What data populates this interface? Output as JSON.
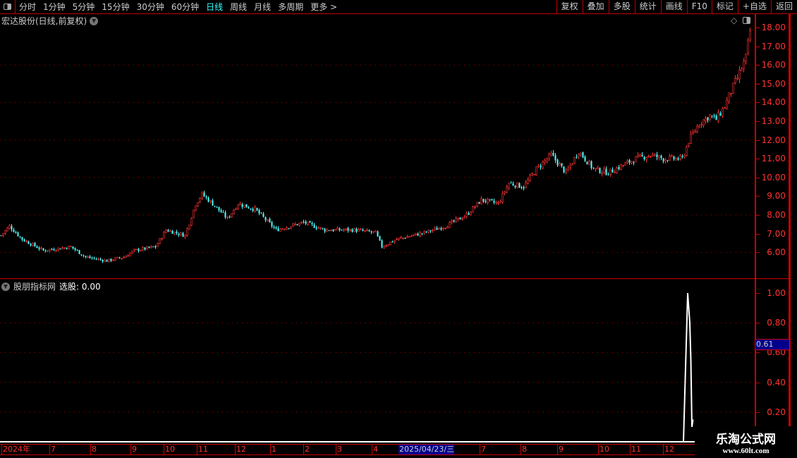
{
  "toolbar": {
    "periods": [
      "分时",
      "1分钟",
      "5分钟",
      "15分钟",
      "30分钟",
      "60分钟",
      "日线",
      "周线",
      "月线",
      "多周期",
      "更多 >"
    ],
    "active_period": "日线",
    "actions": [
      "复权",
      "叠加",
      "多股",
      "统计",
      "画线",
      "F10",
      "标记",
      "+自选",
      "返回"
    ]
  },
  "main": {
    "title": "宏达股份(日线,前复权)"
  },
  "indicator": {
    "name": "股朋指标网",
    "label": "选股: 0.00",
    "cursor_value": "0.61"
  },
  "price_axis": [
    "18.00",
    "17.00",
    "16.00",
    "15.00",
    "14.00",
    "13.00",
    "12.00",
    "11.00",
    "10.00",
    "9.00",
    "8.00",
    "7.00",
    "6.00"
  ],
  "indicator_axis": [
    "1.00",
    "0.80",
    "0.60",
    "0.40",
    "0.20"
  ],
  "date_axis": [
    "2024年",
    "7",
    "8",
    "9",
    "10",
    "11",
    "12",
    "1",
    "2",
    "3",
    "4",
    "2025/04/23/三",
    "7",
    "8",
    "9",
    "10",
    "11",
    "12"
  ],
  "watermark": {
    "name": "乐淘公式网",
    "url": "www.60lt.com"
  },
  "colors": {
    "up": "#ff3232",
    "down": "#54ffff",
    "axis": "#cc0000",
    "cursor_bg": "#00008b"
  },
  "chart_data": {
    "type": "candlestick",
    "ylim": [
      5,
      18.5
    ],
    "close_anchors": [
      [
        0,
        6.9
      ],
      [
        4,
        7.4
      ],
      [
        10,
        6.7
      ],
      [
        20,
        6.1
      ],
      [
        33,
        6.3
      ],
      [
        40,
        5.75
      ],
      [
        50,
        5.55
      ],
      [
        58,
        5.75
      ],
      [
        63,
        6.1
      ],
      [
        73,
        6.3
      ],
      [
        78,
        7.2
      ],
      [
        87,
        6.9
      ],
      [
        92,
        8.6
      ],
      [
        95,
        9.1
      ],
      [
        100,
        8.6
      ],
      [
        107,
        7.8
      ],
      [
        112,
        8.6
      ],
      [
        120,
        8.3
      ],
      [
        130,
        7.2
      ],
      [
        143,
        7.6
      ],
      [
        153,
        7.2
      ],
      [
        167,
        7.2
      ],
      [
        177,
        7.05
      ],
      [
        180,
        6.3
      ],
      [
        187,
        6.7
      ],
      [
        200,
        7.05
      ],
      [
        210,
        7.4
      ],
      [
        220,
        8.0
      ],
      [
        227,
        8.8
      ],
      [
        235,
        8.6
      ],
      [
        240,
        9.7
      ],
      [
        247,
        9.5
      ],
      [
        253,
        10.45
      ],
      [
        260,
        11.2
      ],
      [
        267,
        10.25
      ],
      [
        273,
        11.4
      ],
      [
        280,
        10.45
      ],
      [
        287,
        10.25
      ],
      [
        293,
        10.6
      ],
      [
        300,
        11.0
      ],
      [
        307,
        11.2
      ],
      [
        313,
        11.0
      ],
      [
        322,
        11.0
      ],
      [
        325,
        11.95
      ],
      [
        330,
        12.9
      ],
      [
        335,
        13.3
      ],
      [
        338,
        13.1
      ],
      [
        342,
        13.8
      ],
      [
        345,
        14.6
      ],
      [
        348,
        15.3
      ],
      [
        352,
        16.4
      ],
      [
        354,
        17.8
      ]
    ],
    "indicator": {
      "type": "line",
      "ylim": [
        0,
        1.05
      ],
      "points": [
        [
          323,
          0
        ],
        [
          324,
          0.5
        ],
        [
          325,
          1.0
        ],
        [
          326,
          0.8
        ],
        [
          326.5,
          0.55
        ],
        [
          327,
          0.1
        ],
        [
          327.5,
          0.15
        ]
      ]
    }
  }
}
